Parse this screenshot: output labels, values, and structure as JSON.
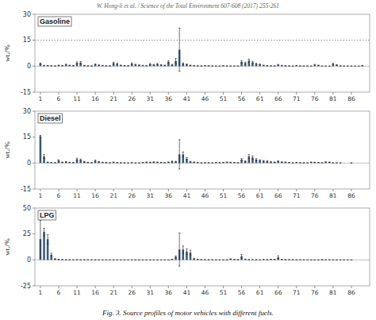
{
  "chart_data": [
    {
      "type": "bar",
      "title": "Gasoline",
      "annotations": [
        "W. Hong-li et al. / Science of the Total Environment 607-608 (2017) 255-261"
      ],
      "y_label": "wt./%",
      "color": "#3a5878",
      "grid": false,
      "xlim": [
        -0.5,
        91
      ],
      "xticks": [
        1,
        6,
        11,
        16,
        21,
        26,
        31,
        36,
        41,
        46,
        51,
        56,
        61,
        66,
        71,
        76,
        81,
        86
      ],
      "ylim": [
        -15,
        30
      ],
      "yticks": [
        -15,
        0,
        15,
        30
      ],
      "reference_line": 15,
      "x": [
        1,
        2,
        3,
        4,
        5,
        6,
        7,
        8,
        9,
        10,
        11,
        12,
        13,
        14,
        15,
        16,
        17,
        18,
        19,
        20,
        21,
        22,
        23,
        24,
        25,
        26,
        27,
        28,
        29,
        30,
        31,
        32,
        33,
        34,
        35,
        36,
        37,
        38,
        39,
        40,
        41,
        42,
        43,
        44,
        45,
        46,
        47,
        48,
        49,
        50,
        51,
        52,
        53,
        54,
        55,
        56,
        57,
        58,
        59,
        60,
        61,
        62,
        63,
        64,
        65,
        66,
        67,
        68,
        69,
        70,
        71,
        72,
        73,
        74,
        75,
        76,
        77,
        78,
        79,
        80,
        81,
        82,
        83,
        84,
        85,
        86,
        87,
        88,
        89
      ],
      "values": [
        1.5,
        0.4,
        0.3,
        0.2,
        0.15,
        0.5,
        0.3,
        0.9,
        0.5,
        0.3,
        1.9,
        2.0,
        0.4,
        0.2,
        0.15,
        1.0,
        0.6,
        0.4,
        0.2,
        0.2,
        1.8,
        1.3,
        0.5,
        0.3,
        0.25,
        1.5,
        0.9,
        0.6,
        0.4,
        0.25,
        1.2,
        0.8,
        1.2,
        0.7,
        0.5,
        2.5,
        0.8,
        3.0,
        9.5,
        1.5,
        1.0,
        0.5,
        0.3,
        0.2,
        0.15,
        0.3,
        0.2,
        0.15,
        0.1,
        0.08,
        0.25,
        0.15,
        0.1,
        0.08,
        0.06,
        2.5,
        1.8,
        3.2,
        2.2,
        1.3,
        1.0,
        0.5,
        0.3,
        0.2,
        0.15,
        0.8,
        0.4,
        0.25,
        0.15,
        0.1,
        0.3,
        0.15,
        0.1,
        0.08,
        0.05,
        0.8,
        0.5,
        0.08,
        0.05,
        0.03,
        1.3,
        0.7,
        0.15,
        0.1,
        0.08,
        0.05,
        0.04,
        0.03,
        0.35
      ],
      "errors": [
        0.3,
        0.1,
        0.08,
        0.05,
        0.04,
        0.12,
        0.08,
        0.25,
        0.13,
        0.08,
        0.55,
        0.6,
        0.1,
        0.05,
        0.04,
        0.28,
        0.16,
        0.1,
        0.05,
        0.05,
        0.5,
        0.38,
        0.13,
        0.08,
        0.06,
        0.42,
        0.25,
        0.16,
        0.1,
        0.06,
        0.34,
        0.22,
        0.34,
        0.19,
        0.13,
        0.7,
        0.22,
        1.5,
        12.5,
        0.4,
        0.27,
        0.13,
        0.08,
        0.05,
        0.04,
        0.08,
        0.05,
        0.04,
        0.025,
        0.02,
        0.06,
        0.04,
        0.025,
        0.02,
        0.015,
        0.7,
        0.5,
        0.9,
        0.62,
        0.37,
        0.28,
        0.13,
        0.08,
        0.05,
        0.04,
        0.22,
        0.1,
        0.06,
        0.04,
        0.025,
        0.08,
        0.04,
        0.025,
        0.02,
        0.012,
        0.22,
        0.13,
        0.02,
        0.012,
        0.008,
        0.37,
        0.19,
        0.04,
        0.025,
        0.02,
        0.012,
        0.01,
        0.008,
        0.09
      ]
    },
    {
      "type": "bar",
      "title": "Diesel",
      "y_label": "wt./%",
      "color": "#3a5878",
      "grid": false,
      "xlim": [
        -0.5,
        91
      ],
      "xticks": [
        1,
        6,
        11,
        16,
        21,
        26,
        31,
        36,
        41,
        46,
        51,
        56,
        61,
        66,
        71,
        76,
        81,
        86
      ],
      "ylim": [
        -15,
        30
      ],
      "yticks": [
        -15,
        0,
        15,
        30
      ],
      "x": [
        1,
        2,
        3,
        4,
        5,
        6,
        7,
        8,
        9,
        10,
        11,
        12,
        13,
        14,
        15,
        16,
        17,
        18,
        19,
        20,
        21,
        22,
        23,
        24,
        25,
        26,
        27,
        28,
        29,
        30,
        31,
        32,
        33,
        34,
        35,
        36,
        37,
        38,
        39,
        40,
        41,
        42,
        43,
        44,
        45,
        46,
        47,
        48,
        49,
        50,
        51,
        52,
        53,
        54,
        55,
        56,
        57,
        58,
        59,
        60,
        61,
        62,
        63,
        64,
        65,
        66,
        67,
        68,
        69,
        70,
        71,
        72,
        73,
        74,
        75,
        76,
        77,
        78,
        79,
        80,
        81,
        82,
        83,
        86
      ],
      "values": [
        15.5,
        3.8,
        0.5,
        0.3,
        0.2,
        1.5,
        0.5,
        0.7,
        0.4,
        0.25,
        2.2,
        1.8,
        0.8,
        0.4,
        0.2,
        1.3,
        0.7,
        0.4,
        0.25,
        0.15,
        0.5,
        0.25,
        0.15,
        0.1,
        0.08,
        0.2,
        0.1,
        0.08,
        0.3,
        0.5,
        0.4,
        0.6,
        0.5,
        0.35,
        0.25,
        0.5,
        0.9,
        0.8,
        5.0,
        5.0,
        2.5,
        0.8,
        0.5,
        0.3,
        0.1,
        0.2,
        0.15,
        0.1,
        0.3,
        0.25,
        0.3,
        0.5,
        0.4,
        0.3,
        0.2,
        2.0,
        1.0,
        3.8,
        3.2,
        2.0,
        1.5,
        1.2,
        1.0,
        0.7,
        0.5,
        1.0,
        0.6,
        0.5,
        0.3,
        0.15,
        0.3,
        0.2,
        0.15,
        0.1,
        0.5,
        0.4,
        0.3,
        0.15,
        0.6,
        0.5,
        0.15,
        0.1,
        0.08,
        0.08
      ],
      "errors": [
        0.5,
        1.1,
        0.13,
        0.08,
        0.05,
        0.42,
        0.13,
        0.19,
        0.1,
        0.06,
        0.62,
        0.5,
        0.22,
        0.1,
        0.05,
        0.37,
        0.19,
        0.1,
        0.06,
        0.04,
        0.13,
        0.06,
        0.04,
        0.025,
        0.02,
        0.05,
        0.025,
        0.02,
        0.08,
        0.13,
        0.1,
        0.16,
        0.13,
        0.09,
        0.06,
        0.13,
        0.25,
        0.22,
        8.5,
        1.4,
        0.7,
        0.22,
        0.13,
        0.08,
        0.025,
        0.05,
        0.04,
        0.025,
        0.08,
        0.06,
        0.08,
        0.13,
        0.1,
        0.08,
        0.05,
        0.56,
        0.28,
        1.1,
        0.9,
        0.56,
        0.42,
        0.34,
        0.28,
        0.19,
        0.13,
        0.28,
        0.16,
        0.13,
        0.08,
        0.04,
        0.08,
        0.05,
        0.04,
        0.025,
        0.13,
        0.1,
        0.08,
        0.04,
        0.16,
        0.13,
        0.04,
        0.025,
        0.02,
        0.02
      ]
    },
    {
      "type": "bar",
      "title": "LPG",
      "annotations": [
        "Fig. 3. Source profiles of motor vehicles with different fuels."
      ],
      "y_label": "wt./%",
      "color": "#3a5878",
      "grid": false,
      "xlim": [
        -0.5,
        91
      ],
      "xticks": [
        1,
        6,
        11,
        16,
        21,
        26,
        31,
        36,
        41,
        46,
        51,
        56,
        61,
        66,
        71,
        76,
        81,
        86
      ],
      "ylim": [
        -25,
        50
      ],
      "yticks": [
        -25,
        0,
        25,
        50
      ],
      "x": [
        1,
        2,
        3,
        4,
        5,
        6,
        7,
        8,
        9,
        10,
        11,
        12,
        13,
        14,
        15,
        16,
        17,
        18,
        19,
        20,
        21,
        22,
        23,
        24,
        25,
        26,
        27,
        28,
        29,
        30,
        31,
        32,
        33,
        34,
        35,
        36,
        37,
        38,
        39,
        40,
        41,
        42,
        43,
        44,
        45,
        46,
        47,
        48,
        49,
        50,
        51,
        52,
        53,
        54,
        55,
        56,
        57,
        58,
        59,
        60,
        61,
        62,
        63,
        64,
        65,
        66,
        67,
        68,
        69,
        70,
        71,
        72,
        73,
        74,
        75,
        76,
        77,
        78,
        79,
        80,
        81,
        82,
        83,
        84,
        85,
        86
      ],
      "values": [
        20.0,
        27.0,
        20.0,
        5.0,
        1.0,
        0.5,
        0.3,
        0.15,
        0.1,
        0.08,
        0.2,
        0.1,
        0.06,
        0.1,
        0.08,
        0.06,
        0.04,
        0.03,
        0.05,
        0.04,
        0.05,
        0.04,
        0.03,
        0.02,
        0.03,
        0.02,
        0.02,
        0.015,
        0.02,
        0.015,
        0.02,
        0.015,
        0.02,
        0.015,
        0.02,
        0.015,
        0.5,
        3.0,
        10.0,
        10.0,
        8.0,
        7.0,
        1.2,
        0.6,
        0.35,
        0.2,
        0.15,
        0.1,
        0.08,
        0.06,
        0.05,
        0.04,
        0.8,
        0.4,
        0.3,
        3.5,
        0.6,
        0.3,
        0.2,
        0.15,
        0.1,
        0.3,
        0.2,
        0.5,
        0.4,
        2.5,
        0.5,
        0.3,
        0.2,
        0.15,
        0.1,
        0.08,
        0.06,
        0.05,
        0.04,
        0.03,
        0.02,
        0.3,
        0.1,
        0.08,
        0.06,
        0.05,
        0.04,
        0.03,
        0.02,
        0.05
      ],
      "errors": [
        18.0,
        3.5,
        4.5,
        1.4,
        0.28,
        0.13,
        0.08,
        0.04,
        0.025,
        0.02,
        0.05,
        0.025,
        0.015,
        0.025,
        0.02,
        0.015,
        0.01,
        0.008,
        0.012,
        0.01,
        0.012,
        0.01,
        0.008,
        0.005,
        0.008,
        0.005,
        0.005,
        0.004,
        0.005,
        0.004,
        0.005,
        0.004,
        0.005,
        0.004,
        0.005,
        0.004,
        0.13,
        0.85,
        16.0,
        3.5,
        2.8,
        2.4,
        0.34,
        0.16,
        0.09,
        0.05,
        0.04,
        0.025,
        0.02,
        0.015,
        0.012,
        0.01,
        0.22,
        0.1,
        0.08,
        1.8,
        0.16,
        0.08,
        0.05,
        0.04,
        0.025,
        0.08,
        0.05,
        0.13,
        0.1,
        1.5,
        0.13,
        0.08,
        0.05,
        0.04,
        0.025,
        0.02,
        0.015,
        0.012,
        0.01,
        0.008,
        0.005,
        0.08,
        0.025,
        0.02,
        0.015,
        0.012,
        0.01,
        0.008,
        0.005,
        0.012
      ]
    }
  ]
}
